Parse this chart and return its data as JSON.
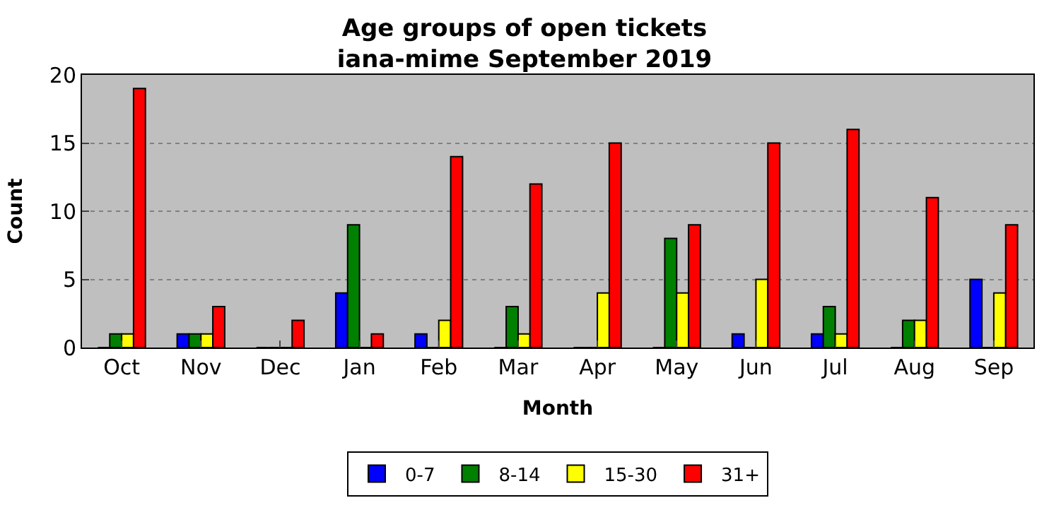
{
  "chart_data": {
    "type": "bar",
    "title": "Age groups of open tickets\niana-mime September 2019",
    "xlabel": "Month",
    "ylabel": "Count",
    "categories": [
      "Oct",
      "Nov",
      "Dec",
      "Jan",
      "Feb",
      "Mar",
      "Apr",
      "May",
      "Jun",
      "Jul",
      "Aug",
      "Sep"
    ],
    "series": [
      {
        "name": "0-7",
        "color": "#0000ff",
        "values": [
          0,
          1,
          0,
          4,
          1,
          0,
          0,
          0,
          1,
          1,
          0,
          5
        ]
      },
      {
        "name": "8-14",
        "color": "#008000",
        "values": [
          1,
          1,
          0,
          9,
          0,
          3,
          0,
          8,
          0,
          3,
          2,
          0
        ]
      },
      {
        "name": "15-30",
        "color": "#ffff00",
        "values": [
          1,
          1,
          0,
          0,
          2,
          1,
          4,
          4,
          5,
          1,
          2,
          4
        ]
      },
      {
        "name": "31+",
        "color": "#ff0000",
        "values": [
          19,
          3,
          2,
          1,
          14,
          12,
          15,
          9,
          15,
          16,
          11,
          9
        ]
      }
    ],
    "ylim": [
      0,
      20
    ],
    "yticks": [
      0,
      5,
      10,
      15,
      20
    ],
    "grid": "y",
    "legend": "bottom"
  }
}
